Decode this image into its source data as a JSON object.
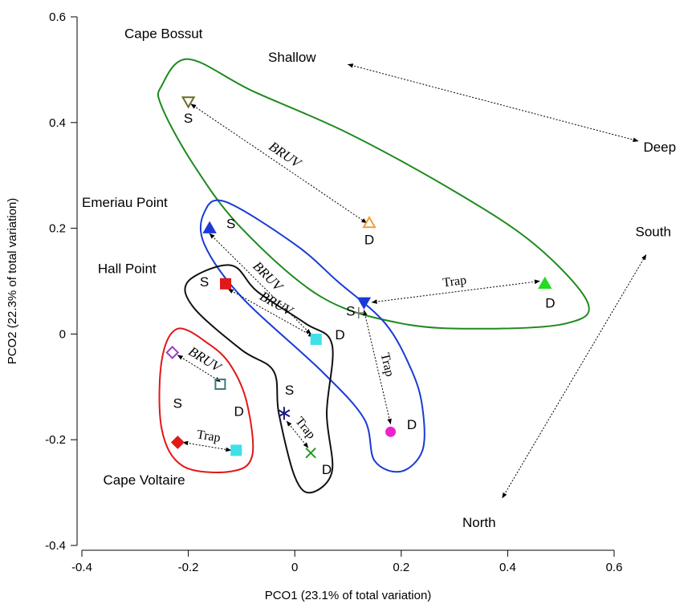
{
  "chart_data": {
    "type": "scatter",
    "title": "",
    "xlabel": "PCO1 (23.1% of total variation)",
    "ylabel": "PCO2 (22.3% of total variation)",
    "xlim": [
      -0.4,
      0.6
    ],
    "ylim": [
      -0.4,
      0.6
    ],
    "x_ticks": [
      "-0.4",
      "-0.2",
      "0",
      "0.2",
      "0.4",
      "0.6"
    ],
    "y_ticks": [
      "-0.4",
      "-0.2",
      "0",
      "0.2",
      "0.4",
      "0.6"
    ],
    "grid": false,
    "points": [
      {
        "x": -0.2,
        "y": 0.44,
        "marker": "triangle-down-open",
        "color": "#6b6b2a"
      },
      {
        "x": 0.14,
        "y": 0.21,
        "marker": "triangle-up-open",
        "color": "#f39a3c"
      },
      {
        "x": 0.47,
        "y": 0.095,
        "marker": "triangle-up",
        "color": "#22dd22"
      },
      {
        "x": -0.16,
        "y": 0.2,
        "marker": "triangle-up",
        "color": "#1a3ad6"
      },
      {
        "x": 0.13,
        "y": 0.06,
        "marker": "triangle-down",
        "color": "#1a3ad6"
      },
      {
        "x": -0.13,
        "y": 0.095,
        "marker": "square",
        "color": "#e01818"
      },
      {
        "x": 0.04,
        "y": -0.01,
        "marker": "square",
        "color": "#3fe0e8"
      },
      {
        "x": 0.12,
        "y": 0.04,
        "marker": "plus",
        "color": "#777777"
      },
      {
        "x": 0.18,
        "y": -0.185,
        "marker": "circle",
        "color": "#ee22cc"
      },
      {
        "x": -0.23,
        "y": -0.035,
        "marker": "diamond-open",
        "color": "#9a3fbf"
      },
      {
        "x": -0.14,
        "y": -0.095,
        "marker": "square-open",
        "color": "#3f7a7a"
      },
      {
        "x": -0.22,
        "y": -0.205,
        "marker": "diamond",
        "color": "#e01818"
      },
      {
        "x": -0.11,
        "y": -0.22,
        "marker": "square",
        "color": "#3fe0e8"
      },
      {
        "x": -0.02,
        "y": -0.15,
        "marker": "asterisk",
        "color": "#1a1a7a"
      },
      {
        "x": 0.03,
        "y": -0.225,
        "marker": "cross",
        "color": "#229922"
      }
    ],
    "groups": [
      {
        "name": "Cape Bossut",
        "color": "#1e8a1e",
        "label_at": [
          -0.32,
          0.56
        ],
        "outline": [
          [
            -0.25,
            0.47
          ],
          [
            -0.2,
            0.52
          ],
          [
            -0.08,
            0.46
          ],
          [
            0.1,
            0.38
          ],
          [
            0.3,
            0.27
          ],
          [
            0.45,
            0.17
          ],
          [
            0.55,
            0.06
          ],
          [
            0.51,
            0.02
          ],
          [
            0.35,
            0.01
          ],
          [
            0.2,
            0.02
          ],
          [
            0.05,
            0.07
          ],
          [
            -0.1,
            0.2
          ],
          [
            -0.19,
            0.32
          ],
          [
            -0.25,
            0.43
          ]
        ]
      },
      {
        "name": "Emeriau Point",
        "color": "#1a3ad6",
        "label_at": [
          -0.4,
          0.24
        ],
        "outline": [
          [
            -0.17,
            0.23
          ],
          [
            -0.13,
            0.25
          ],
          [
            0.0,
            0.17
          ],
          [
            0.08,
            0.1
          ],
          [
            0.17,
            0.02
          ],
          [
            0.22,
            -0.07
          ],
          [
            0.24,
            -0.14
          ],
          [
            0.24,
            -0.22
          ],
          [
            0.2,
            -0.26
          ],
          [
            0.15,
            -0.24
          ],
          [
            0.13,
            -0.16
          ],
          [
            0.05,
            -0.07
          ],
          [
            -0.1,
            0.07
          ],
          [
            -0.17,
            0.17
          ]
        ]
      },
      {
        "name": "Hall Point",
        "color": "#111111",
        "label_at": [
          -0.37,
          0.115
        ],
        "outline": [
          [
            -0.2,
            0.1
          ],
          [
            -0.12,
            0.13
          ],
          [
            -0.07,
            0.08
          ],
          [
            0.02,
            0.02
          ],
          [
            0.07,
            -0.02
          ],
          [
            0.06,
            -0.15
          ],
          [
            0.07,
            -0.26
          ],
          [
            0.03,
            -0.3
          ],
          [
            0.0,
            -0.27
          ],
          [
            -0.03,
            -0.15
          ],
          [
            -0.04,
            -0.07
          ],
          [
            -0.1,
            -0.03
          ],
          [
            -0.19,
            0.05
          ]
        ]
      },
      {
        "name": "Cape Voltaire",
        "color": "#e01818",
        "label_at": [
          -0.36,
          -0.285
        ],
        "outline": [
          [
            -0.25,
            -0.05
          ],
          [
            -0.22,
            0.01
          ],
          [
            -0.16,
            -0.02
          ],
          [
            -0.12,
            -0.06
          ],
          [
            -0.09,
            -0.13
          ],
          [
            -0.08,
            -0.23
          ],
          [
            -0.12,
            -0.26
          ],
          [
            -0.21,
            -0.25
          ],
          [
            -0.25,
            -0.18
          ]
        ]
      }
    ],
    "connectors": [
      {
        "from": [
          -0.195,
          0.435
        ],
        "to": [
          0.135,
          0.21
        ],
        "label": "BRUV"
      },
      {
        "from": [
          -0.16,
          0.19
        ],
        "to": [
          0.03,
          0.0
        ],
        "label": "BRUV"
      },
      {
        "from": [
          -0.125,
          0.085
        ],
        "to": [
          0.035,
          -0.005
        ],
        "label": "BRUV"
      },
      {
        "from": [
          -0.22,
          -0.04
        ],
        "to": [
          -0.14,
          -0.09
        ],
        "label": "BRUV"
      },
      {
        "from": [
          0.145,
          0.06
        ],
        "to": [
          0.46,
          0.1
        ],
        "label": "Trap"
      },
      {
        "from": [
          0.13,
          0.045
        ],
        "to": [
          0.18,
          -0.17
        ],
        "label": "Trap"
      },
      {
        "from": [
          -0.21,
          -0.205
        ],
        "to": [
          -0.12,
          -0.22
        ],
        "label": "Trap"
      },
      {
        "from": [
          -0.015,
          -0.165
        ],
        "to": [
          0.025,
          -0.215
        ],
        "label": "Trap"
      }
    ],
    "region_labels": [
      {
        "text": "Shallow",
        "at": [
          -0.05,
          0.515
        ]
      },
      {
        "text": "Deep",
        "at": [
          0.655,
          0.345
        ]
      },
      {
        "text": "South",
        "at": [
          0.64,
          0.185
        ]
      },
      {
        "text": "North",
        "at": [
          0.315,
          -0.365
        ]
      }
    ],
    "direction_arrows": [
      {
        "from": [
          0.1,
          0.51
        ],
        "to": [
          0.645,
          0.365
        ]
      },
      {
        "from": [
          0.39,
          -0.31
        ],
        "to": [
          0.66,
          0.15
        ]
      }
    ],
    "sd_labels": [
      {
        "text": "S",
        "at": [
          -0.2,
          0.4
        ]
      },
      {
        "text": "D",
        "at": [
          0.14,
          0.17
        ]
      },
      {
        "text": "S",
        "at": [
          -0.12,
          0.2
        ]
      },
      {
        "text": "D",
        "at": [
          0.48,
          0.05
        ]
      },
      {
        "text": "S",
        "at": [
          -0.17,
          0.09
        ]
      },
      {
        "text": "S",
        "at": [
          0.105,
          0.035
        ]
      },
      {
        "text": "D",
        "at": [
          0.085,
          -0.01
        ]
      },
      {
        "text": "D",
        "at": [
          0.22,
          -0.18
        ]
      },
      {
        "text": "S",
        "at": [
          -0.22,
          -0.14
        ]
      },
      {
        "text": "D",
        "at": [
          -0.105,
          -0.155
        ]
      },
      {
        "text": "S",
        "at": [
          -0.01,
          -0.115
        ]
      },
      {
        "text": "D",
        "at": [
          0.06,
          -0.265
        ]
      }
    ]
  }
}
